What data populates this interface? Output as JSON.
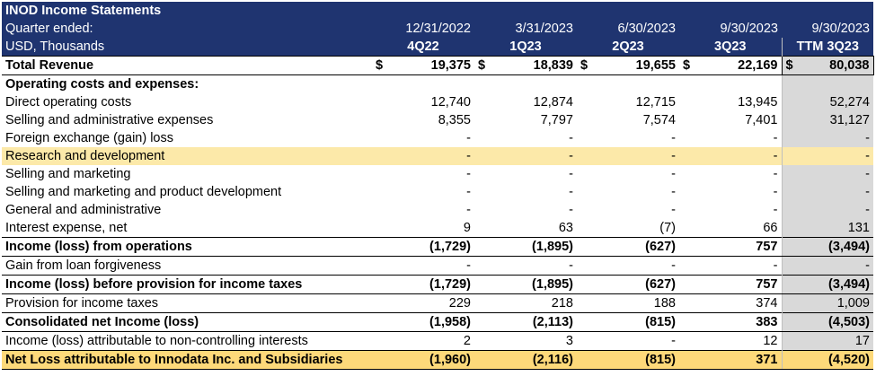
{
  "header": {
    "title": "INOD Income Statements",
    "quarter_label": "Quarter ended:",
    "unit_label": "USD, Thousands",
    "dates": [
      "12/31/2022",
      "3/31/2023",
      "6/30/2023",
      "9/30/2023"
    ],
    "ttm_date": "9/30/2023",
    "codes": [
      "4Q22",
      "1Q23",
      "2Q23",
      "3Q23"
    ],
    "ttm_code": "TTM 3Q23"
  },
  "currency_symbol": "$",
  "rows": {
    "total_revenue": {
      "label": "Total Revenue",
      "values": [
        "19,375",
        "18,839",
        "19,655",
        "22,169"
      ],
      "ttm": "80,038"
    },
    "opex_header": {
      "label": "Operating costs and expenses:"
    },
    "direct_costs": {
      "label": "Direct operating costs",
      "values": [
        "12,740",
        "12,874",
        "12,715",
        "13,945"
      ],
      "ttm": "52,274"
    },
    "sga": {
      "label": "Selling and administrative expenses",
      "values": [
        "8,355",
        "7,797",
        "7,574",
        "7,401"
      ],
      "ttm": "31,127"
    },
    "fx": {
      "label": "Foreign exchange (gain) loss",
      "values": [
        "-",
        "-",
        "-",
        "-"
      ],
      "ttm": "-"
    },
    "rnd": {
      "label": "Research and development",
      "values": [
        "-",
        "-",
        "-",
        "-"
      ],
      "ttm": "-"
    },
    "sm": {
      "label": "Selling and marketing",
      "values": [
        "-",
        "-",
        "-",
        "-"
      ],
      "ttm": "-"
    },
    "smpd": {
      "label": "Selling and marketing and product development",
      "values": [
        "-",
        "-",
        "-",
        "-"
      ],
      "ttm": "-"
    },
    "ga": {
      "label": "General and administrative",
      "values": [
        "-",
        "-",
        "-",
        "-"
      ],
      "ttm": "-"
    },
    "interest": {
      "label": "Interest expense, net",
      "values": [
        "9",
        "63",
        "(7)",
        "66"
      ],
      "ttm": "131"
    },
    "income_ops": {
      "label": "Income (loss) from operations",
      "values": [
        "(1,729)",
        "(1,895)",
        "(627)",
        "757"
      ],
      "ttm": "(3,494)"
    },
    "loan_forgiveness": {
      "label": "Gain from loan forgiveness",
      "values": [
        "-",
        "-",
        "-",
        "-"
      ],
      "ttm": "-"
    },
    "income_pretax": {
      "label": "Income (loss) before provision for income taxes",
      "values": [
        "(1,729)",
        "(1,895)",
        "(627)",
        "757"
      ],
      "ttm": "(3,494)"
    },
    "tax": {
      "label": "Provision for income taxes",
      "values": [
        "229",
        "218",
        "188",
        "374"
      ],
      "ttm": "1,009"
    },
    "net_income": {
      "label": "Consolidated net Income (loss)",
      "values": [
        "(1,958)",
        "(2,113)",
        "(815)",
        "383"
      ],
      "ttm": "(4,503)"
    },
    "nci": {
      "label": "Income (loss) attributable to non-controlling interests",
      "values": [
        "2",
        "3",
        "-",
        "12"
      ],
      "ttm": "17"
    },
    "net_loss_inod": {
      "label": "Net Loss attributable to Innodata Inc. and Subsidiaries",
      "values": [
        "(1,960)",
        "(2,116)",
        "(815)",
        "371"
      ],
      "ttm": "(4,520)"
    }
  }
}
